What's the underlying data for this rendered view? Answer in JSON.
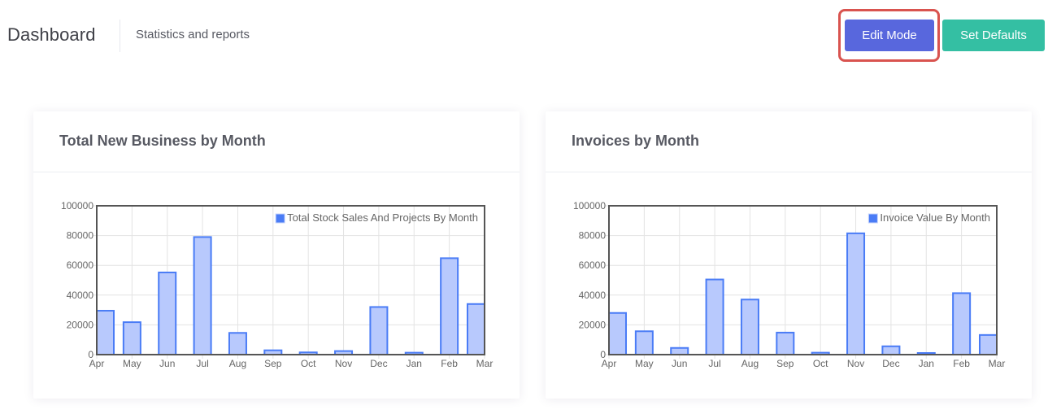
{
  "header": {
    "title": "Dashboard",
    "subtitle": "Statistics and reports",
    "edit_mode_label": "Edit Mode",
    "set_defaults_label": "Set Defaults"
  },
  "colors": {
    "primary": "#5867dd",
    "success": "#34bfa3",
    "highlight": "#d9534f",
    "bar_fill": "#b8c9fd",
    "bar_stroke": "#4a7cf6",
    "legend_box": "#4a7cf6"
  },
  "cards": [
    {
      "title": "Total New Business by Month"
    },
    {
      "title": "Invoices by Month"
    }
  ],
  "chart_data": [
    {
      "type": "bar",
      "title": "Total New Business by Month",
      "categories": [
        "Apr",
        "May",
        "Jun",
        "Jul",
        "Aug",
        "Sep",
        "Oct",
        "Nov",
        "Dec",
        "Jan",
        "Feb",
        "Mar"
      ],
      "series": [
        {
          "name": "Total Stock Sales And Projects By Month",
          "values": [
            29500,
            21800,
            55200,
            79000,
            14600,
            2900,
            1500,
            2400,
            32000,
            1300,
            64800,
            34000
          ]
        }
      ],
      "ylim": [
        0,
        100000
      ],
      "yticks": [
        "0",
        "20000",
        "40000",
        "60000",
        "80000",
        "100000"
      ],
      "xlabel": "",
      "ylabel": "",
      "grid": true,
      "legend": "top-right"
    },
    {
      "type": "bar",
      "title": "Invoices by Month",
      "categories": [
        "Apr",
        "May",
        "Jun",
        "Jul",
        "Aug",
        "Sep",
        "Oct",
        "Nov",
        "Dec",
        "Jan",
        "Feb",
        "Mar"
      ],
      "series": [
        {
          "name": "Invoice Value By Month",
          "values": [
            28000,
            15700,
            4500,
            50500,
            37000,
            14800,
            1300,
            81500,
            5600,
            1100,
            41300,
            13200
          ]
        }
      ],
      "ylim": [
        0,
        100000
      ],
      "yticks": [
        "0",
        "20000",
        "40000",
        "60000",
        "80000",
        "100000"
      ],
      "xlabel": "",
      "ylabel": "",
      "grid": true,
      "legend": "top-right"
    }
  ]
}
